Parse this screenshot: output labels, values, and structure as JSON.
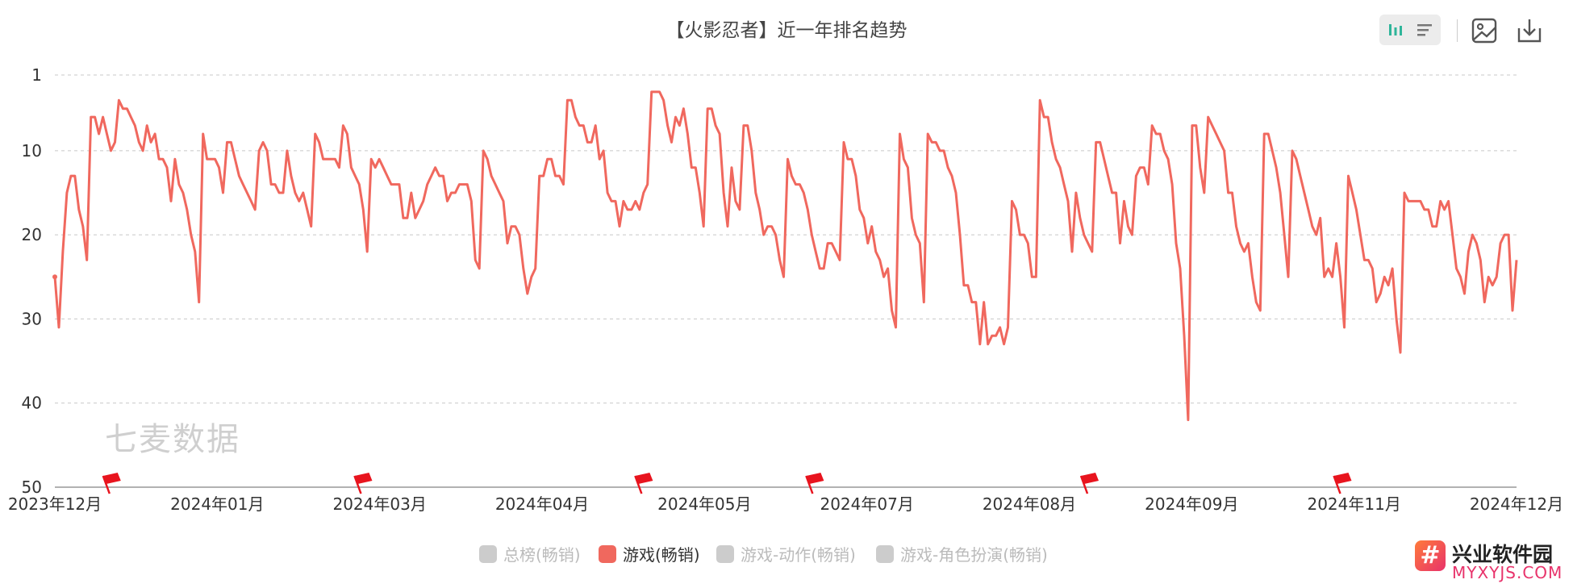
{
  "title": "【火影忍者】近一年排名趋势",
  "toolbar": {
    "buttons": [
      {
        "name": "bar-chart-icon",
        "active": true
      },
      {
        "name": "list-icon",
        "active": false
      },
      {
        "name": "image-icon",
        "active": false
      },
      {
        "name": "download-icon",
        "active": false
      }
    ]
  },
  "watermark": "七麦数据",
  "brand": {
    "name": "兴业软件园",
    "url": "MYXYJS.COM"
  },
  "colors": {
    "series": "#f0685e",
    "grid": "#c8c8c8",
    "axis": "#333333",
    "legend_off": "#cccccc",
    "flag": "#e8141e"
  },
  "legend": [
    {
      "label": "总榜(畅销)",
      "active": false
    },
    {
      "label": "游戏(畅销)",
      "active": true
    },
    {
      "label": "游戏-动作(畅销)",
      "active": false
    },
    {
      "label": "游戏-角色扮演(畅销)",
      "active": false
    }
  ],
  "chart_data": {
    "type": "line",
    "title": "【火影忍者】近一年排名趋势",
    "xlabel": "",
    "ylabel": "",
    "y_inverted": true,
    "ylim": [
      1,
      50
    ],
    "y_ticks": [
      1,
      10,
      20,
      30,
      40,
      50
    ],
    "x_ticks": [
      "2023年12月",
      "2024年01月",
      "2024年03月",
      "2024年04月",
      "2024年05月",
      "2024年07月",
      "2024年08月",
      "2024年09月",
      "2024年11月",
      "2024年12月"
    ],
    "event_flags": 6,
    "series": [
      {
        "name": "游戏(畅销)",
        "values": [
          25,
          31,
          22,
          15,
          13,
          13,
          17,
          19,
          23,
          6,
          6,
          8,
          6,
          8,
          10,
          9,
          4,
          5,
          5,
          6,
          7,
          9,
          10,
          7,
          9,
          8,
          11,
          11,
          12,
          16,
          11,
          14,
          15,
          17,
          20,
          22,
          28,
          8,
          11,
          11,
          11,
          12,
          15,
          9,
          9,
          11,
          13,
          14,
          15,
          16,
          17,
          10,
          9,
          10,
          14,
          14,
          15,
          15,
          10,
          13,
          15,
          16,
          15,
          17,
          19,
          8,
          9,
          11,
          11,
          11,
          11,
          12,
          7,
          8,
          12,
          13,
          14,
          17,
          22,
          11,
          12,
          11,
          12,
          13,
          14,
          14,
          14,
          18,
          18,
          15,
          18,
          17,
          16,
          14,
          13,
          12,
          13,
          13,
          16,
          15,
          15,
          14,
          14,
          14,
          16,
          23,
          24,
          10,
          11,
          13,
          14,
          15,
          16,
          21,
          19,
          19,
          20,
          24,
          27,
          25,
          24,
          13,
          13,
          11,
          11,
          13,
          13,
          14,
          4,
          4,
          6,
          7,
          7,
          9,
          9,
          7,
          11,
          10,
          15,
          16,
          16,
          19,
          16,
          17,
          17,
          16,
          17,
          15,
          14,
          3,
          3,
          3,
          4,
          7,
          9,
          6,
          7,
          5,
          8,
          12,
          12,
          15,
          19,
          5,
          5,
          7,
          8,
          15,
          19,
          12,
          16,
          17,
          7,
          7,
          10,
          15,
          17,
          20,
          19,
          19,
          20,
          23,
          25,
          11,
          13,
          14,
          14,
          15,
          17,
          20,
          22,
          24,
          24,
          21,
          21,
          22,
          23,
          9,
          11,
          11,
          13,
          17,
          18,
          21,
          19,
          22,
          23,
          25,
          24,
          29,
          31,
          8,
          11,
          12,
          18,
          20,
          21,
          28,
          8,
          9,
          9,
          10,
          10,
          12,
          13,
          15,
          20,
          26,
          26,
          28,
          28,
          33,
          28,
          33,
          32,
          32,
          31,
          33,
          31,
          16,
          17,
          20,
          20,
          21,
          25,
          25,
          4,
          6,
          6,
          9,
          11,
          12,
          14,
          16,
          22,
          15,
          18,
          20,
          21,
          22,
          9,
          9,
          11,
          13,
          15,
          15,
          21,
          16,
          19,
          20,
          13,
          12,
          12,
          14,
          7,
          8,
          8,
          10,
          11,
          14,
          21,
          24,
          32,
          42,
          7,
          7,
          12,
          15,
          6,
          7,
          8,
          9,
          10,
          15,
          15,
          19,
          21,
          22,
          21,
          25,
          28,
          29,
          8,
          8,
          10,
          12,
          15,
          20,
          25,
          10,
          11,
          13,
          15,
          17,
          19,
          20,
          18,
          25,
          24,
          25,
          21,
          25,
          31,
          13,
          15,
          17,
          20,
          23,
          23,
          24,
          28,
          27,
          25,
          26,
          24,
          30,
          34,
          15,
          16,
          16,
          16,
          16,
          17,
          17,
          19,
          19,
          16,
          17,
          16,
          20,
          24,
          25,
          27,
          22,
          20,
          21,
          23,
          28,
          25,
          26,
          25,
          21,
          20,
          20,
          29,
          23
        ]
      }
    ]
  }
}
